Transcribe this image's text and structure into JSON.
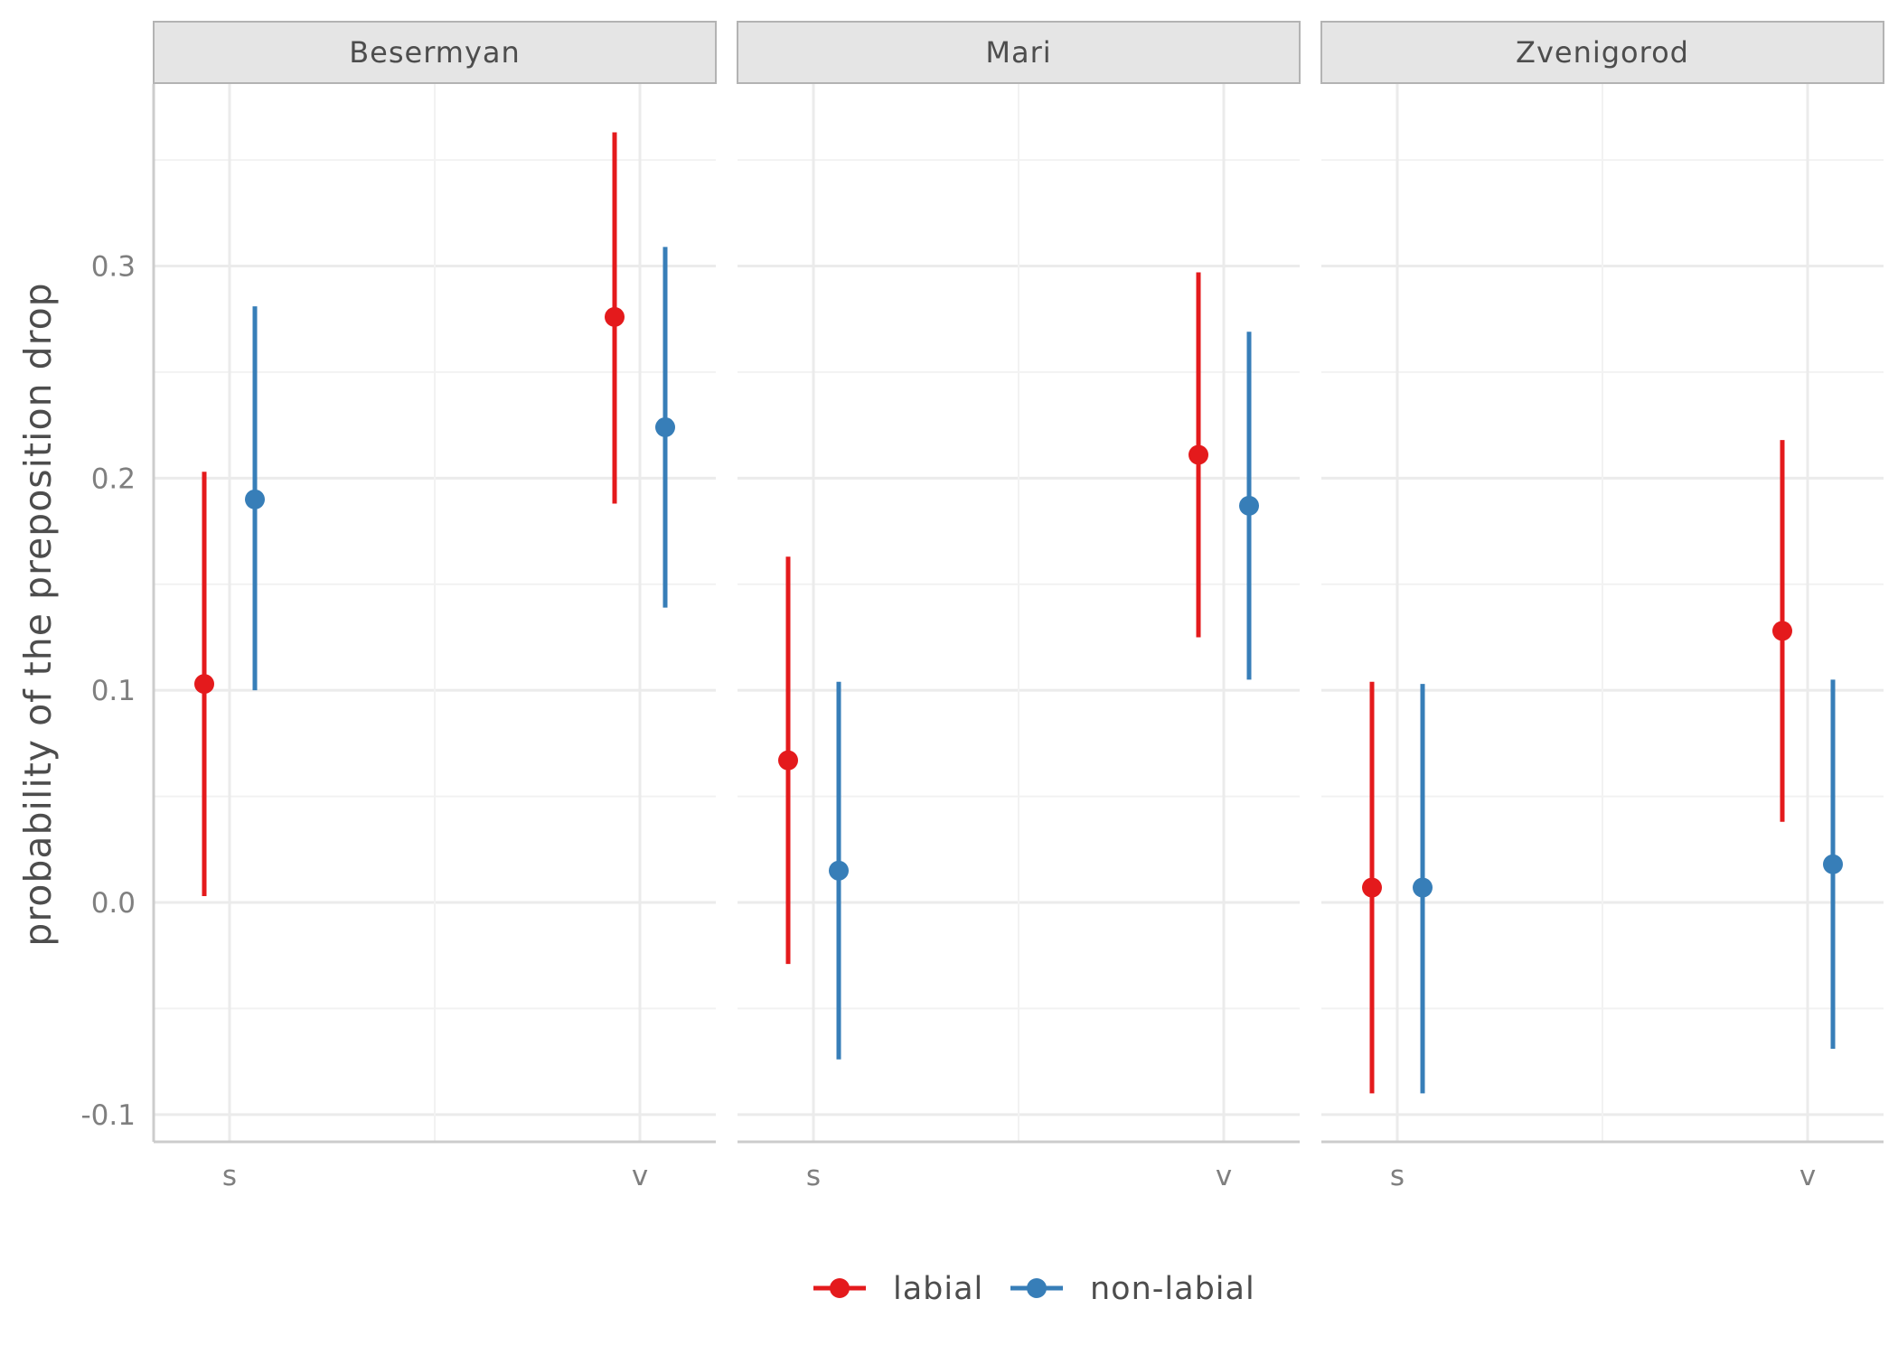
{
  "chart_data": {
    "type": "scatter",
    "subtype": "pointrange",
    "ylabel": "probability of the preposition drop",
    "xlabel": "",
    "ylim": [
      -0.12,
      0.38
    ],
    "yticks": [
      -0.1,
      0.0,
      0.1,
      0.2,
      0.3
    ],
    "ytick_labels": [
      "-0.1",
      "0.0",
      "0.1",
      "0.2",
      "0.3"
    ],
    "categories": [
      "s",
      "v"
    ],
    "grid": true,
    "legend_position": "bottom",
    "colors": {
      "labial": "#e41a1c",
      "non-labial": "#377eb8"
    },
    "legend": [
      {
        "key": "labial",
        "label": "labial"
      },
      {
        "key": "non-labial",
        "label": "non-labial"
      }
    ],
    "panels": [
      {
        "title": "Besermyan",
        "series": [
          {
            "name": "labial",
            "points": [
              {
                "x": "s",
                "y": 0.103,
                "ymin": 0.003,
                "ymax": 0.203
              },
              {
                "x": "v",
                "y": 0.276,
                "ymin": 0.188,
                "ymax": 0.363
              }
            ]
          },
          {
            "name": "non-labial",
            "points": [
              {
                "x": "s",
                "y": 0.19,
                "ymin": 0.1,
                "ymax": 0.281
              },
              {
                "x": "v",
                "y": 0.224,
                "ymin": 0.139,
                "ymax": 0.309
              }
            ]
          }
        ]
      },
      {
        "title": "Mari",
        "series": [
          {
            "name": "labial",
            "points": [
              {
                "x": "s",
                "y": 0.067,
                "ymin": -0.029,
                "ymax": 0.163
              },
              {
                "x": "v",
                "y": 0.211,
                "ymin": 0.125,
                "ymax": 0.297
              }
            ]
          },
          {
            "name": "non-labial",
            "points": [
              {
                "x": "s",
                "y": 0.015,
                "ymin": -0.074,
                "ymax": 0.104
              },
              {
                "x": "v",
                "y": 0.187,
                "ymin": 0.105,
                "ymax": 0.269
              }
            ]
          }
        ]
      },
      {
        "title": "Zvenigorod",
        "series": [
          {
            "name": "labial",
            "points": [
              {
                "x": "s",
                "y": 0.007,
                "ymin": -0.09,
                "ymax": 0.104
              },
              {
                "x": "v",
                "y": 0.128,
                "ymin": 0.038,
                "ymax": 0.218
              }
            ]
          },
          {
            "name": "non-labial",
            "points": [
              {
                "x": "s",
                "y": 0.007,
                "ymin": -0.09,
                "ymax": 0.103
              },
              {
                "x": "v",
                "y": 0.018,
                "ymin": -0.069,
                "ymax": 0.105
              }
            ]
          }
        ]
      }
    ]
  }
}
